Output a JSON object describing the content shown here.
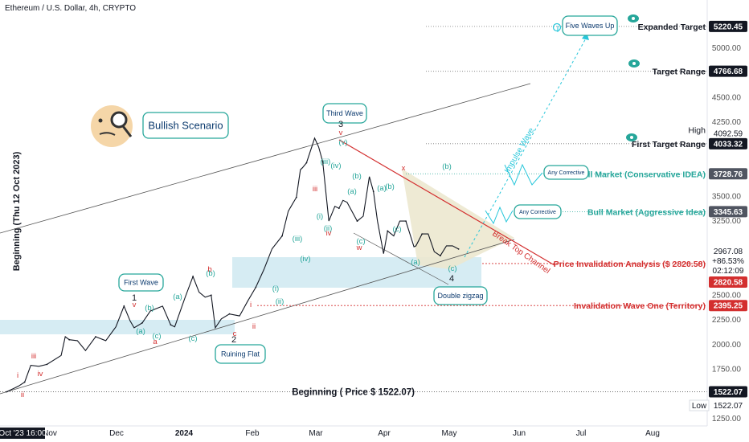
{
  "header": {
    "title": "Ethereum / U.S. Dollar, 4h, CRYPTO"
  },
  "rotated_label": "Beginning (Thu 12 Oct 2023)",
  "colors": {
    "teal": "#26a69a",
    "red": "#d32f2f",
    "cyan": "#26c6da",
    "zone": "#d6ecf3",
    "wedge": "#ece8cf",
    "candle": "#131722"
  },
  "chart_data": {
    "type": "line",
    "title": "Ethereum / U.S. Dollar, 4h, CRYPTO",
    "x_ticks": [
      "Oct '23",
      "Nov",
      "Dec",
      "2024",
      "Feb",
      "Mar",
      "Apr",
      "May",
      "Jun",
      "Jul",
      "Aug"
    ],
    "x_cursor_label": "16:00",
    "y_ticks": [
      "5000.00",
      "4500.00",
      "4250.00",
      "3500.00",
      "3250.00",
      "2500.00",
      "2250.00",
      "2000.00",
      "1750.00",
      "1250.00"
    ],
    "price_series": {
      "name": "ETHUSD",
      "points": [
        [
          "2023-10-12",
          1522
        ],
        [
          "2023-10-16",
          1560
        ],
        [
          "2023-10-18",
          1580
        ],
        [
          "2023-10-21",
          1620
        ],
        [
          "2023-10-24",
          1790
        ],
        [
          "2023-10-28",
          1780
        ],
        [
          "2023-11-01",
          1800
        ],
        [
          "2023-11-08",
          1890
        ],
        [
          "2023-11-10",
          2080
        ],
        [
          "2023-11-12",
          2050
        ],
        [
          "2023-11-16",
          2040
        ],
        [
          "2023-11-20",
          1940
        ],
        [
          "2023-11-25",
          2080
        ],
        [
          "2023-11-30",
          2040
        ],
        [
          "2023-12-05",
          2180
        ],
        [
          "2023-12-09",
          2390
        ],
        [
          "2023-12-12",
          2240
        ],
        [
          "2023-12-14",
          2170
        ],
        [
          "2023-12-18",
          2220
        ],
        [
          "2023-12-22",
          2340
        ],
        [
          "2023-12-28",
          2390
        ],
        [
          "2024-01-01",
          2200
        ],
        [
          "2024-01-03",
          2180
        ],
        [
          "2024-01-08",
          2470
        ],
        [
          "2024-01-12",
          2690
        ],
        [
          "2024-01-15",
          2530
        ],
        [
          "2024-01-18",
          2480
        ],
        [
          "2024-01-21",
          2500
        ],
        [
          "2024-01-23",
          2170
        ],
        [
          "2024-01-26",
          2260
        ],
        [
          "2024-01-30",
          2310
        ],
        [
          "2024-02-04",
          2290
        ],
        [
          "2024-02-08",
          2440
        ],
        [
          "2024-02-12",
          2580
        ],
        [
          "2024-02-16",
          2760
        ],
        [
          "2024-02-20",
          2970
        ],
        [
          "2024-02-25",
          3100
        ],
        [
          "2024-02-28",
          3350
        ],
        [
          "2024-03-01",
          3420
        ],
        [
          "2024-03-03",
          3490
        ],
        [
          "2024-03-05",
          3770
        ],
        [
          "2024-03-06",
          3790
        ],
        [
          "2024-03-08",
          3840
        ],
        [
          "2024-03-12",
          4090
        ],
        [
          "2024-03-14",
          4000
        ],
        [
          "2024-03-16",
          3850
        ],
        [
          "2024-03-19",
          3250
        ],
        [
          "2024-03-22",
          3400
        ],
        [
          "2024-03-24",
          3380
        ],
        [
          "2024-03-26",
          3460
        ],
        [
          "2024-03-28",
          3440
        ],
        [
          "2024-04-02",
          3250
        ],
        [
          "2024-04-05",
          3300
        ],
        [
          "2024-04-08",
          3700
        ],
        [
          "2024-04-10",
          3550
        ],
        [
          "2024-04-12",
          3250
        ],
        [
          "2024-04-15",
          2920
        ],
        [
          "2024-04-17",
          3150
        ],
        [
          "2024-04-20",
          3100
        ],
        [
          "2024-04-23",
          3250
        ],
        [
          "2024-04-26",
          3250
        ],
        [
          "2024-04-30",
          2990
        ],
        [
          "2024-05-01",
          3000
        ],
        [
          "2024-05-04",
          3120
        ],
        [
          "2024-05-07",
          3120
        ],
        [
          "2024-05-10",
          2940
        ],
        [
          "2024-05-13",
          2900
        ],
        [
          "2024-05-16",
          3000
        ],
        [
          "2024-05-19",
          3000
        ],
        [
          "2024-05-22",
          2967
        ]
      ]
    },
    "price_levels": [
      {
        "price": 5220.45,
        "label": "Expanded Target",
        "badge": "5220.45"
      },
      {
        "price": 4766.68,
        "label": "Target Range",
        "badge": "4766.68"
      },
      {
        "price": 4092.59,
        "label": "High",
        "badge": "4092.59"
      },
      {
        "price": 4033.32,
        "label": "First Target Range",
        "badge": "4033.32"
      },
      {
        "price": 3728.76,
        "label": "Bull Market (Conservative IDEA)",
        "badge": "3728.76"
      },
      {
        "price": 3345.63,
        "label": "Bull Market (Aggressive Idea)",
        "badge": "3345.63"
      },
      {
        "price": 2820.58,
        "label": "Price Invalidation Analysis ($ 2820.58)",
        "badge": "2820.58"
      },
      {
        "price": 2395.25,
        "label": "Invalidation Wave One (Territory)",
        "badge": "2395.25"
      },
      {
        "price": 1522.07,
        "label": "Beginning ( Price $ 1522.07)",
        "badge": "1522.07"
      },
      {
        "price": 1522.07,
        "label": "Low",
        "badge": "1522.07"
      }
    ],
    "current_price": {
      "value": "2967.08",
      "change": "+86.53%",
      "countdown": "02:12:09"
    },
    "annotations": {
      "callouts": [
        "Bullish Scenario",
        "Third Wave",
        "First Wave",
        "Ruining Flat",
        "Double zigzag",
        "Five Waves Up",
        "Any Corrective",
        "Any Corrective"
      ],
      "diagonal_texts": [
        "Impulse Wave",
        "Break Top Channel"
      ],
      "wave_labels": [
        "i",
        "ii",
        "iii",
        "iv",
        "1",
        "v",
        "a",
        "(a)",
        "(b)",
        "(c)",
        "b",
        "(b)",
        "(a)",
        "(c)",
        "c",
        "2",
        "i",
        "ii",
        "(i)",
        "(ii)",
        "(iii)",
        "(iv)",
        "iii",
        "iv",
        "v",
        "3",
        "(i)",
        "(ii)",
        "(iii)",
        "(iv)",
        "(v)",
        "(a)",
        "(b)",
        "(c)",
        "w",
        "(a)",
        "(b)",
        "(c)",
        "x",
        "(a)",
        "(b)",
        "(c)",
        "4"
      ]
    },
    "legend": "none",
    "grid": false
  }
}
